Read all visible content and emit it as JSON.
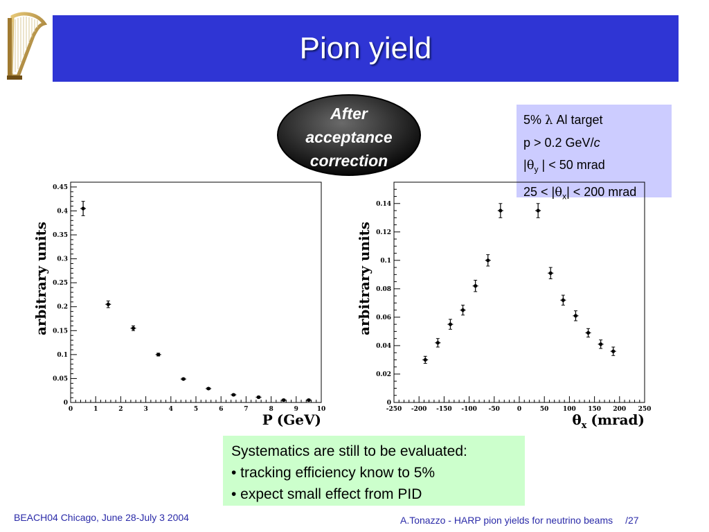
{
  "slide": {
    "title": "Pion yield",
    "badge_lines": [
      "After",
      "acceptance",
      "correction"
    ],
    "conditions": {
      "line1_pre": "5% ",
      "line1_sym": "λ",
      "line1_post": " Al target",
      "line2_pre": "p > 0.2 GeV/",
      "line2_it": "c",
      "line3_pre": "|",
      "line3_sym": "θ",
      "line3_sub": "y",
      "line3_post": " | < 50 mrad",
      "line4_pre": "25 < |",
      "line4_sym": "θ",
      "line4_sub": "x",
      "line4_post": "| < 200 mrad"
    },
    "systematics": [
      "Systematics are still to be evaluated:",
      "• tracking efficiency know to 5%",
      "• expect small effect from PID"
    ],
    "footer_left": "BEACH04 Chicago, June 28-July 3 2004",
    "footer_right": "A.Tonazzo - HARP pion yields for neutrino beams",
    "page_number": "/27",
    "colors": {
      "title_bar": "#2f35d4",
      "conditions_box": "#ccccff",
      "systematics_box": "#ccffcc",
      "footer_text": "#2a2aa8"
    },
    "logo_icon": "harp-icon"
  },
  "chart_data": [
    {
      "type": "scatter",
      "ylabel": "arbitrary units",
      "xlabel_main": "P",
      "xlabel_unit": "(GeV)",
      "xlim": [
        0,
        10
      ],
      "ylim": [
        0,
        0.46
      ],
      "xticks": [
        0,
        1,
        2,
        3,
        4,
        5,
        6,
        7,
        8,
        9,
        10
      ],
      "yticks": [
        0,
        0.05,
        0.1,
        0.15,
        0.2,
        0.25,
        0.3,
        0.35,
        0.4,
        0.45
      ],
      "xtick_labels": [
        "0",
        "1",
        "2",
        "3",
        "4",
        "5",
        "6",
        "7",
        "8",
        "9",
        "10"
      ],
      "ytick_labels": [
        "0",
        "0.05",
        "0.1",
        "0.15",
        "0.2",
        "0.25",
        "0.3",
        "0.35",
        "0.4",
        "0.45"
      ],
      "points": [
        {
          "x": 0.5,
          "y": 0.405,
          "err": 0.015
        },
        {
          "x": 1.5,
          "y": 0.205,
          "err": 0.007
        },
        {
          "x": 2.5,
          "y": 0.155,
          "err": 0.005
        },
        {
          "x": 3.5,
          "y": 0.1,
          "err": 0.003
        },
        {
          "x": 4.5,
          "y": 0.049,
          "err": 0.002
        },
        {
          "x": 5.5,
          "y": 0.029,
          "err": 0.002
        },
        {
          "x": 6.5,
          "y": 0.016,
          "err": 0.002
        },
        {
          "x": 7.5,
          "y": 0.011,
          "err": 0.002
        },
        {
          "x": 8.5,
          "y": 0.005,
          "err": 0.002
        },
        {
          "x": 9.5,
          "y": 0.005,
          "err": 0.002
        }
      ],
      "grid": false
    },
    {
      "type": "scatter",
      "ylabel": "arbitrary units",
      "xlabel_main": "θ",
      "xlabel_sub": "x",
      "xlabel_unit": "(mrad)",
      "xlim": [
        -250,
        250
      ],
      "ylim": [
        0,
        0.155
      ],
      "xticks": [
        -250,
        -200,
        -150,
        -100,
        -50,
        0,
        50,
        100,
        150,
        200,
        250
      ],
      "yticks": [
        0,
        0.02,
        0.04,
        0.06,
        0.08,
        0.1,
        0.12,
        0.14
      ],
      "xtick_labels": [
        "-250",
        "-200",
        "-150",
        "-100",
        "-50",
        "0",
        "50",
        "100",
        "150",
        "200",
        "250"
      ],
      "ytick_labels": [
        "0",
        "0.02",
        "0.04",
        "0.06",
        "0.08",
        "0.1",
        "0.12",
        "0.14"
      ],
      "points": [
        {
          "x": -187.5,
          "y": 0.03,
          "err": 0.0025
        },
        {
          "x": -162.5,
          "y": 0.042,
          "err": 0.003
        },
        {
          "x": -137.5,
          "y": 0.055,
          "err": 0.0035
        },
        {
          "x": -112.5,
          "y": 0.065,
          "err": 0.0035
        },
        {
          "x": -87.5,
          "y": 0.082,
          "err": 0.004
        },
        {
          "x": -62.5,
          "y": 0.1,
          "err": 0.004
        },
        {
          "x": -37.5,
          "y": 0.135,
          "err": 0.005
        },
        {
          "x": 37.5,
          "y": 0.135,
          "err": 0.005
        },
        {
          "x": 62.5,
          "y": 0.091,
          "err": 0.004
        },
        {
          "x": 87.5,
          "y": 0.072,
          "err": 0.0035
        },
        {
          "x": 112.5,
          "y": 0.061,
          "err": 0.0035
        },
        {
          "x": 137.5,
          "y": 0.049,
          "err": 0.003
        },
        {
          "x": 162.5,
          "y": 0.041,
          "err": 0.003
        },
        {
          "x": 187.5,
          "y": 0.036,
          "err": 0.003
        }
      ],
      "grid": false
    }
  ]
}
